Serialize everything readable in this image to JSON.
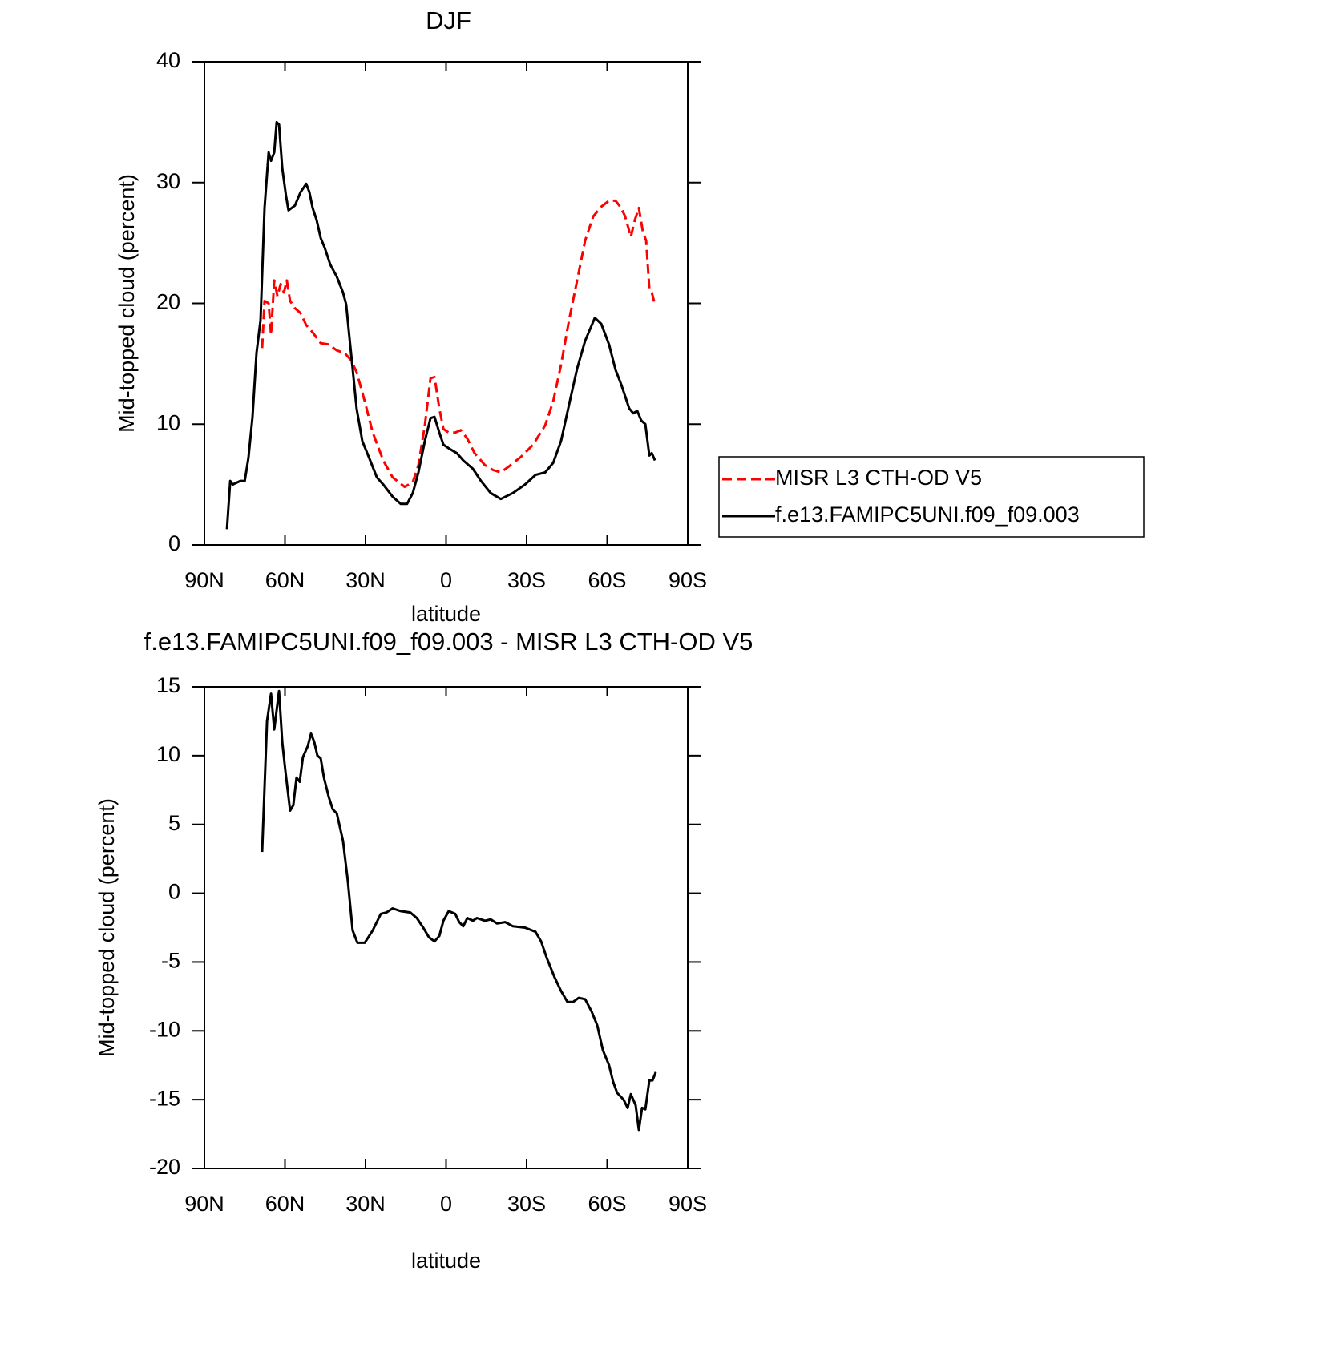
{
  "chart_data": [
    {
      "type": "line",
      "title": "DJF",
      "xlabel": "latitude",
      "ylabel": "Mid-topped cloud (percent)",
      "xlim": [
        90,
        -90
      ],
      "ylim": [
        0,
        40
      ],
      "xticks": [
        {
          "value": 90,
          "label": "90N"
        },
        {
          "value": 60,
          "label": "60N"
        },
        {
          "value": 30,
          "label": "30N"
        },
        0,
        {
          "value": -30,
          "label": "30S"
        },
        {
          "value": -60,
          "label": "60S"
        },
        {
          "value": -90,
          "label": "90S"
        }
      ],
      "yticks": [
        0,
        10,
        20,
        30,
        40
      ],
      "legend": "right",
      "series": [
        {
          "name": "MISR L3 CTH-OD V5",
          "color": "#ff0000",
          "dash": true,
          "x": [
            68.5,
            67.6,
            66.1,
            65.2,
            64,
            62.8,
            61.6,
            60.4,
            59.3,
            58.1,
            56.3,
            54.2,
            52.1,
            49.7,
            46.7,
            43.7,
            40.7,
            37.8,
            35.4,
            33.3,
            30.3,
            27.3,
            23.4,
            19.9,
            15.4,
            12.4,
            10.3,
            7.9,
            5.8,
            4.3,
            2.5,
            1.0,
            -1.0,
            -3.4,
            -5.5,
            -7.9,
            -10.6,
            -14.5,
            -17.5,
            -20.4,
            -23.4,
            -27.9,
            -32.4,
            -36.9,
            -39.9,
            -42.8,
            -45.8,
            -48.8,
            -51.8,
            -54.8,
            -57.8,
            -60.7,
            -63.1,
            -65.2,
            -66.7,
            -68.8,
            -70.3,
            -71.8,
            -73.3,
            -74.5,
            -75.7,
            -76.6,
            -77.8
          ],
          "values": [
            16.3,
            20.2,
            20.0,
            17.4,
            21.9,
            20.6,
            21.6,
            20.9,
            21.9,
            20.2,
            19.6,
            19.2,
            18.2,
            17.6,
            16.7,
            16.6,
            16.1,
            15.9,
            15.3,
            14.3,
            11.9,
            9.3,
            7.0,
            5.6,
            4.8,
            5.2,
            6.6,
            9.9,
            13.8,
            13.9,
            11.3,
            9.6,
            9.3,
            9.3,
            9.5,
            8.8,
            7.6,
            6.6,
            6.2,
            6.0,
            6.5,
            7.3,
            8.3,
            9.9,
            11.9,
            14.9,
            18.6,
            21.9,
            25.2,
            27.2,
            28.0,
            28.5,
            28.5,
            27.9,
            27.2,
            25.5,
            26.9,
            27.9,
            25.9,
            25.2,
            21.2,
            20.9,
            19.9
          ]
        },
        {
          "name": "f.e13.FAMIPC5UNI.f09_f09.003",
          "color": "#000000",
          "dash": false,
          "x": [
            81.6,
            80.4,
            79.5,
            76.6,
            75.0,
            73.6,
            72.1,
            70.6,
            69.1,
            67.6,
            66.1,
            65.2,
            64.0,
            63.1,
            62.2,
            61.0,
            59.6,
            58.7,
            56.3,
            54.2,
            52.1,
            50.9,
            49.7,
            48.2,
            46.7,
            45.2,
            43.1,
            40.7,
            38.4,
            37.2,
            36.0,
            34.8,
            33.3,
            31.2,
            28.8,
            25.8,
            23.4,
            19.9,
            16.9,
            14.5,
            12.4,
            10.3,
            7.9,
            5.8,
            4.3,
            2.5,
            1.0,
            -1.0,
            -4.0,
            -6.4,
            -10.0,
            -13.0,
            -16.6,
            -20.4,
            -24.9,
            -29.4,
            -33.3,
            -36.9,
            -39.9,
            -42.8,
            -45.8,
            -48.8,
            -51.8,
            -55.4,
            -57.8,
            -60.7,
            -63.1,
            -65.2,
            -68.2,
            -69.7,
            -71.2,
            -72.7,
            -74.2,
            -75.7,
            -76.6,
            -77.8
          ],
          "values": [
            1.3,
            5.3,
            5.0,
            5.3,
            5.3,
            7.2,
            10.6,
            15.9,
            18.6,
            27.9,
            32.5,
            31.8,
            32.5,
            35.0,
            34.8,
            31.2,
            28.9,
            27.7,
            28.1,
            29.2,
            29.9,
            29.2,
            27.9,
            26.9,
            25.4,
            24.6,
            23.2,
            22.2,
            20.9,
            19.9,
            17.2,
            14.6,
            11.3,
            8.6,
            7.3,
            5.6,
            5.0,
            4.0,
            3.4,
            3.4,
            4.3,
            6.0,
            8.6,
            10.5,
            10.6,
            9.3,
            8.3,
            8.0,
            7.6,
            7.0,
            6.3,
            5.3,
            4.3,
            3.8,
            4.3,
            5.0,
            5.8,
            6.0,
            6.8,
            8.6,
            11.6,
            14.6,
            16.9,
            18.8,
            18.3,
            16.6,
            14.5,
            13.3,
            11.3,
            10.9,
            11.1,
            10.3,
            10.0,
            7.4,
            7.6,
            7.0
          ]
        }
      ]
    },
    {
      "type": "line",
      "title": "f.e13.FAMIPC5UNI.f09_f09.003 - MISR L3 CTH-OD V5",
      "xlabel": "latitude",
      "ylabel": "Mid-topped cloud (percent)",
      "xlim": [
        90,
        -90
      ],
      "ylim": [
        -20,
        15
      ],
      "xticks": [
        {
          "value": 90,
          "label": "90N"
        },
        {
          "value": 60,
          "label": "60N"
        },
        {
          "value": 30,
          "label": "30N"
        },
        0,
        {
          "value": -30,
          "label": "30S"
        },
        {
          "value": -60,
          "label": "60S"
        },
        {
          "value": -90,
          "label": "90S"
        }
      ],
      "yticks": [
        -20,
        -15,
        -10,
        -5,
        0,
        5,
        10,
        15
      ],
      "series": [
        {
          "color": "#000000",
          "dash": false,
          "x": [
            68.5,
            66.7,
            65.2,
            64.0,
            62.2,
            61.0,
            59.9,
            58.1,
            56.9,
            55.7,
            54.5,
            53.3,
            51.5,
            50.3,
            49.1,
            47.9,
            46.7,
            45.5,
            43.7,
            42.2,
            40.7,
            38.4,
            36.6,
            34.8,
            33.0,
            30.3,
            27.3,
            24.3,
            22.2,
            19.9,
            16.9,
            13.3,
            10.9,
            8.5,
            6.4,
            4.3,
            2.5,
            1.0,
            -1.0,
            -3.4,
            -4.9,
            -6.4,
            -7.9,
            -10.0,
            -11.5,
            -14.5,
            -16.6,
            -19.0,
            -22.0,
            -24.9,
            -29.4,
            -33.3,
            -35.4,
            -37.5,
            -40.4,
            -42.8,
            -45.2,
            -47.3,
            -49.4,
            -51.8,
            -54.2,
            -56.3,
            -58.4,
            -60.7,
            -62.2,
            -63.7,
            -66.1,
            -67.6,
            -68.8,
            -70.6,
            -71.8,
            -73.0,
            -74.2,
            -75.7,
            -76.9,
            -78.1
          ],
          "values": [
            3.0,
            12.5,
            14.5,
            11.9,
            14.7,
            11.0,
            9.0,
            6.0,
            6.4,
            8.4,
            8.1,
            9.9,
            10.7,
            11.6,
            11.0,
            10.0,
            9.8,
            8.4,
            7.0,
            6.1,
            5.8,
            3.8,
            0.9,
            -2.7,
            -3.6,
            -3.6,
            -2.7,
            -1.5,
            -1.4,
            -1.1,
            -1.3,
            -1.4,
            -1.8,
            -2.5,
            -3.2,
            -3.5,
            -3.1,
            -2.0,
            -1.3,
            -1.5,
            -2.1,
            -2.4,
            -1.8,
            -2.0,
            -1.8,
            -2.0,
            -1.9,
            -2.2,
            -2.1,
            -2.4,
            -2.5,
            -2.8,
            -3.5,
            -4.7,
            -6.1,
            -7.1,
            -7.9,
            -7.9,
            -7.6,
            -7.7,
            -8.6,
            -9.6,
            -11.4,
            -12.5,
            -13.7,
            -14.5,
            -15.0,
            -15.6,
            -14.6,
            -15.4,
            -17.2,
            -15.6,
            -15.7,
            -13.6,
            -13.6,
            -13.0
          ]
        }
      ]
    }
  ]
}
